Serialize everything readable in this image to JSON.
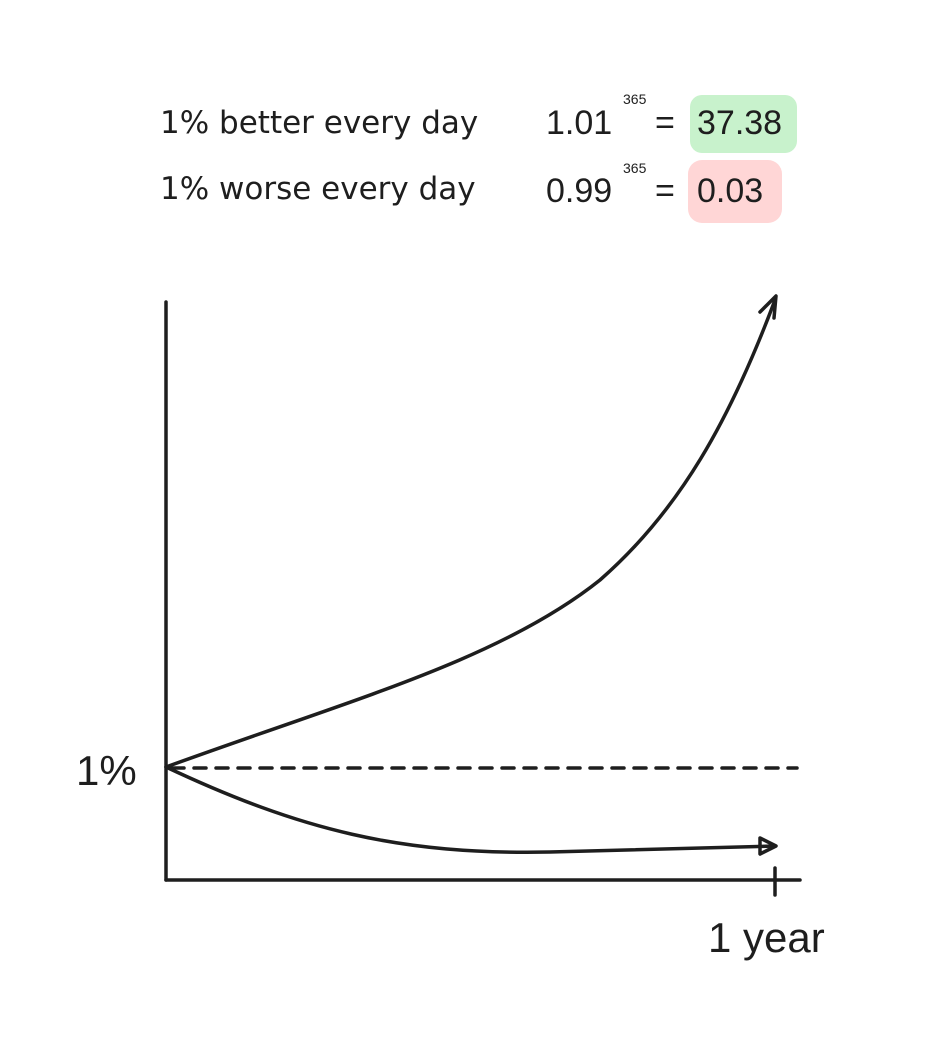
{
  "formulas": [
    {
      "label": "1% better every day",
      "base": "1.01",
      "exponent": "365",
      "equals": "=",
      "result": "37.38"
    },
    {
      "label": "1% worse every day",
      "base": "0.99",
      "exponent": "365",
      "equals": "=",
      "result": "0.03"
    }
  ],
  "axes": {
    "y_label": "1%",
    "x_label": "1 year"
  }
}
